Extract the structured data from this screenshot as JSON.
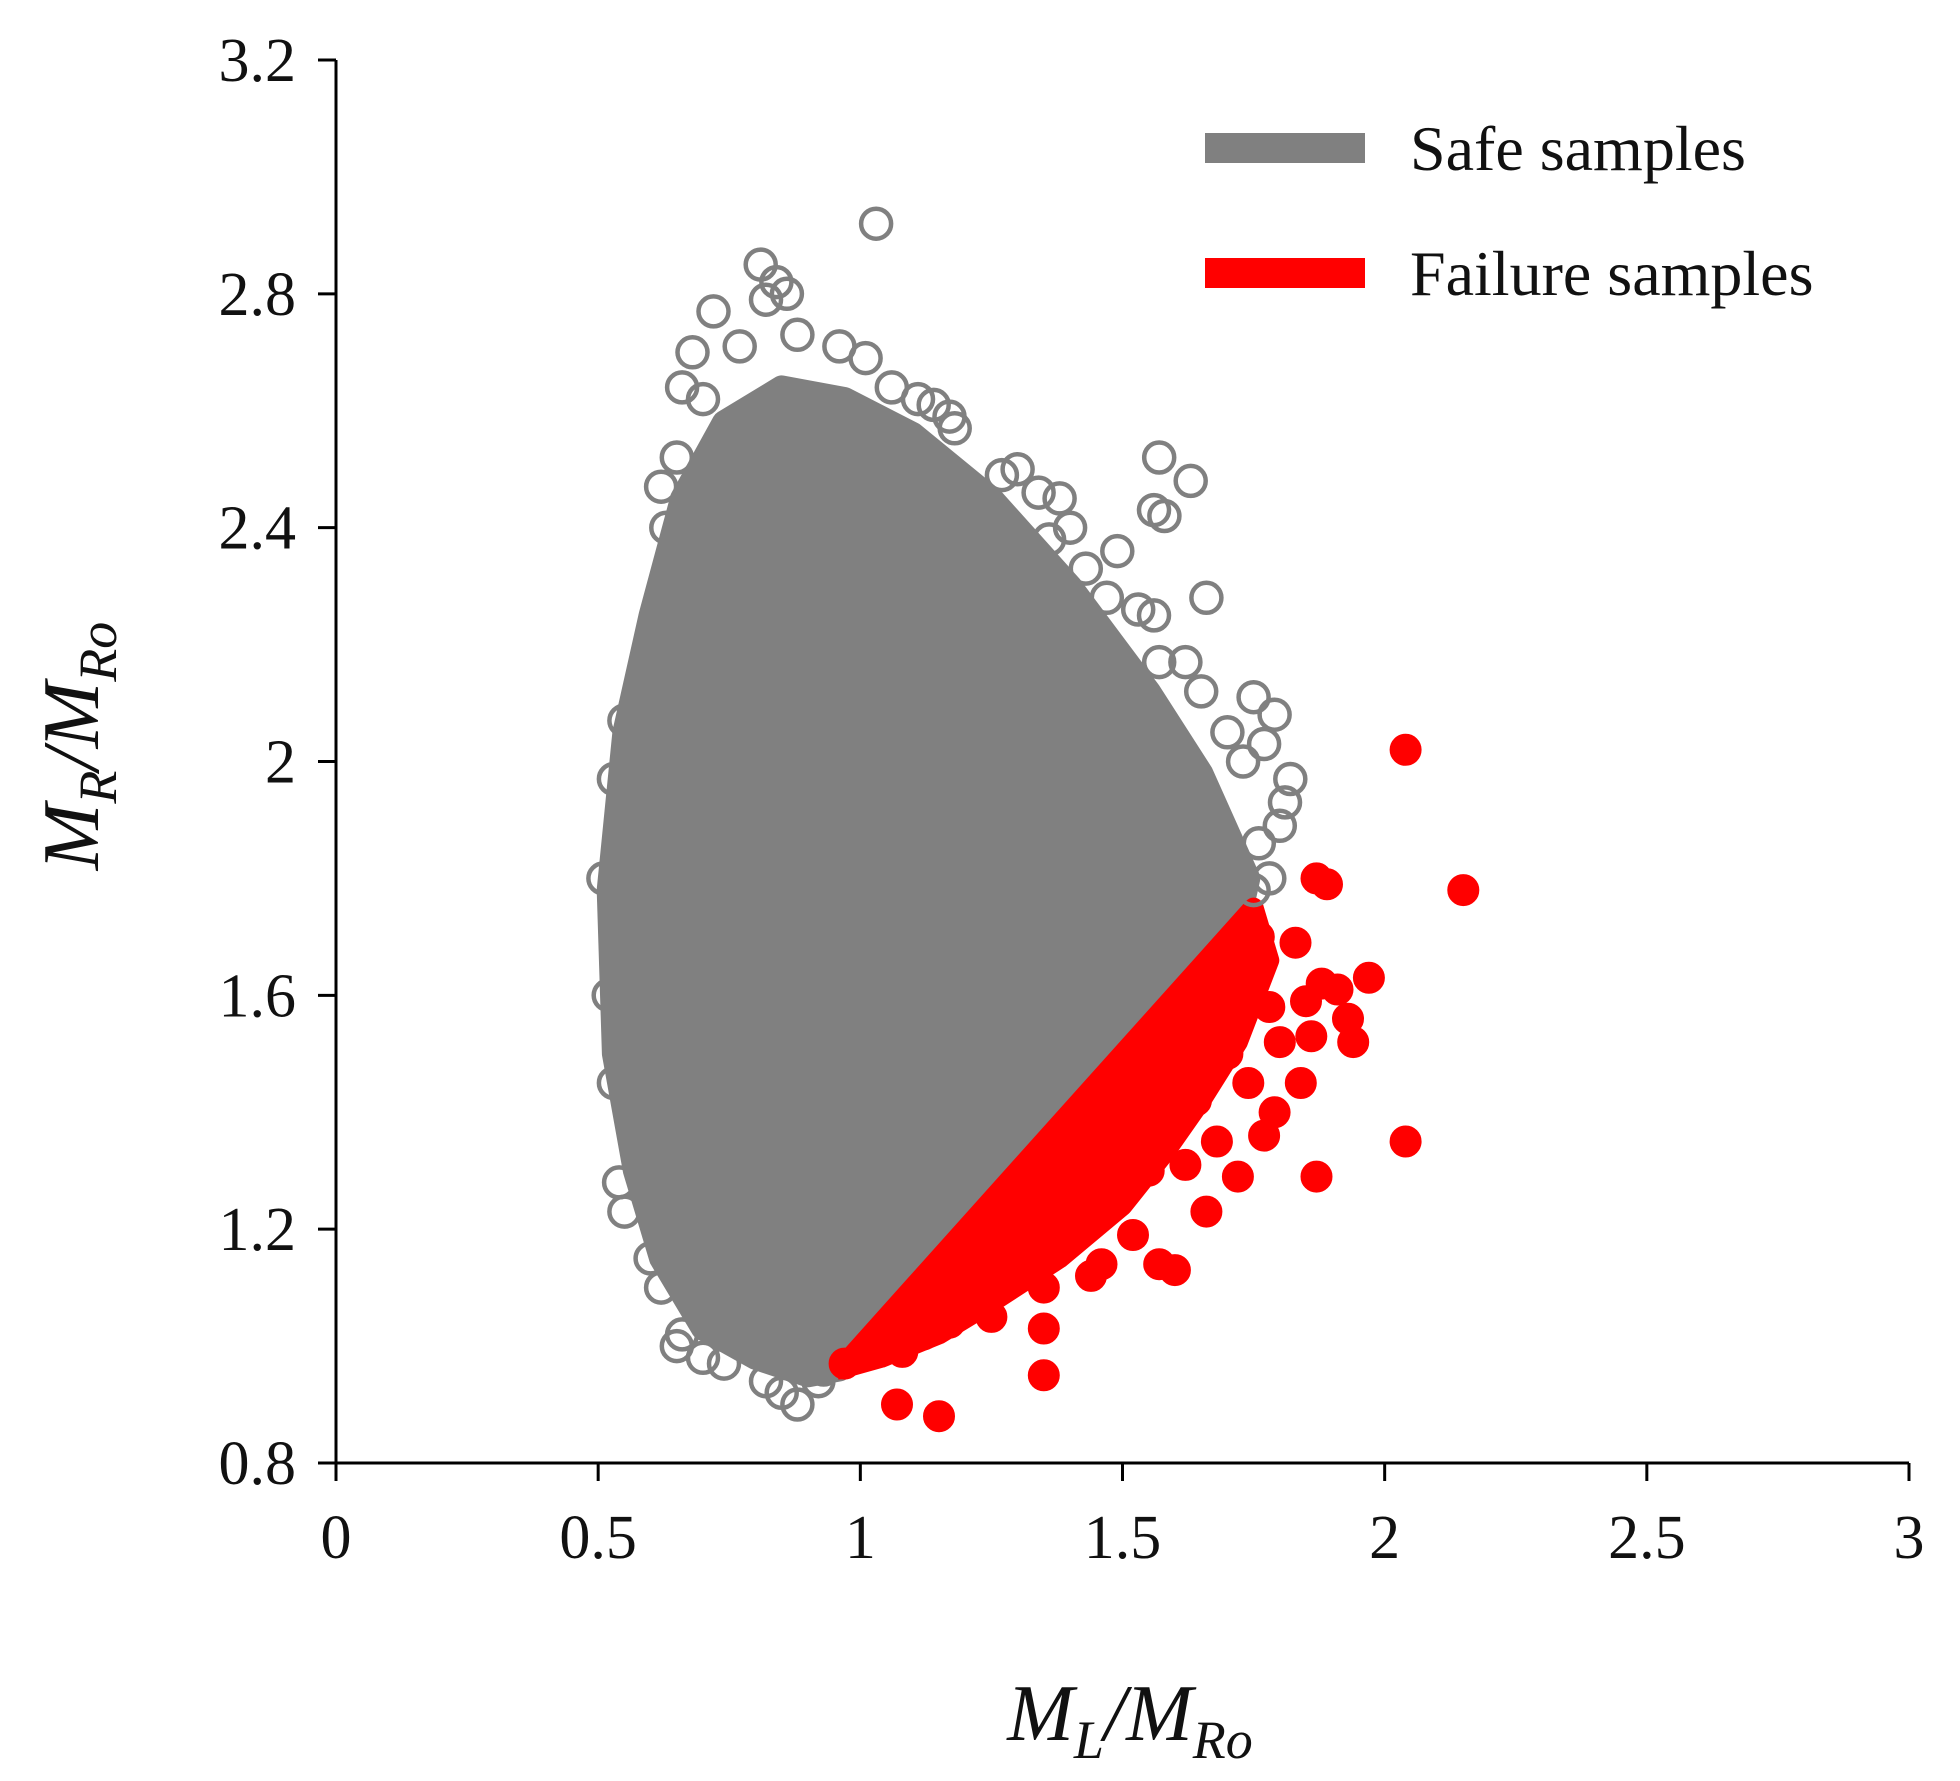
{
  "chart_data": {
    "type": "scatter",
    "title": "",
    "xlabel": "M_L/M_Ro",
    "ylabel": "M_R/M_Ro",
    "axis_label_parts": {
      "x": {
        "main_1": "M",
        "sub_1": "L",
        "slash": "/",
        "main_2": "M",
        "sub_2": "Ro"
      },
      "y": {
        "main_1": "M",
        "sub_1": "R",
        "slash": "/",
        "main_2": "M",
        "sub_2": "Ro"
      }
    },
    "xlim": [
      0,
      3
    ],
    "ylim": [
      0.8,
      3.2
    ],
    "x_ticks": [
      0,
      0.5,
      1,
      1.5,
      2,
      2.5,
      3
    ],
    "y_ticks": [
      0.8,
      1.2,
      1.6,
      2.0,
      2.4,
      2.8,
      3.2
    ],
    "x_tick_labels": [
      "0",
      "0.5",
      "1",
      "1.5",
      "2",
      "2.5",
      "3"
    ],
    "y_tick_labels": [
      "0.8",
      "1.2",
      "1.6",
      "2",
      "2.4",
      "2.8",
      "3.2"
    ],
    "grid": false,
    "legend_position": "top-right",
    "colors": {
      "safe": "#808080",
      "failure": "#ff0000",
      "axis": "#000000"
    },
    "limit_state": "M_R/M_Ro = M_L/M_Ro",
    "series": [
      {
        "name": "Safe samples",
        "marker": "open-circle",
        "color": "#808080",
        "dense_region_polygon": [
          [
            0.52,
            1.78
          ],
          [
            0.55,
            2.05
          ],
          [
            0.6,
            2.25
          ],
          [
            0.66,
            2.45
          ],
          [
            0.74,
            2.58
          ],
          [
            0.85,
            2.64
          ],
          [
            0.97,
            2.62
          ],
          [
            1.1,
            2.56
          ],
          [
            1.25,
            2.45
          ],
          [
            1.4,
            2.3
          ],
          [
            1.55,
            2.12
          ],
          [
            1.65,
            1.98
          ],
          [
            1.74,
            1.8
          ],
          [
            1.72,
            1.72
          ],
          [
            1.5,
            1.5
          ],
          [
            1.3,
            1.3
          ],
          [
            1.1,
            1.1
          ],
          [
            0.96,
            0.96
          ],
          [
            0.9,
            0.95
          ],
          [
            0.8,
            0.98
          ],
          [
            0.7,
            1.03
          ],
          [
            0.62,
            1.15
          ],
          [
            0.57,
            1.3
          ],
          [
            0.53,
            1.5
          ]
        ],
        "points": [
          [
            1.03,
            2.92
          ],
          [
            0.81,
            2.85
          ],
          [
            0.84,
            2.82
          ],
          [
            0.86,
            2.8
          ],
          [
            0.82,
            2.79
          ],
          [
            0.72,
            2.77
          ],
          [
            0.88,
            2.73
          ],
          [
            0.96,
            2.71
          ],
          [
            1.01,
            2.69
          ],
          [
            0.68,
            2.7
          ],
          [
            0.77,
            2.71
          ],
          [
            0.66,
            2.64
          ],
          [
            0.7,
            2.62
          ],
          [
            0.65,
            2.52
          ],
          [
            0.62,
            2.47
          ],
          [
            0.63,
            2.4
          ],
          [
            1.06,
            2.64
          ],
          [
            1.11,
            2.62
          ],
          [
            1.14,
            2.61
          ],
          [
            1.17,
            2.59
          ],
          [
            1.18,
            2.57
          ],
          [
            1.3,
            2.5
          ],
          [
            1.27,
            2.49
          ],
          [
            1.34,
            2.46
          ],
          [
            1.38,
            2.45
          ],
          [
            1.4,
            2.4
          ],
          [
            1.36,
            2.38
          ],
          [
            1.43,
            2.33
          ],
          [
            1.49,
            2.36
          ],
          [
            1.57,
            2.52
          ],
          [
            1.63,
            2.48
          ],
          [
            1.56,
            2.43
          ],
          [
            1.58,
            2.42
          ],
          [
            1.66,
            2.28
          ],
          [
            1.47,
            2.28
          ],
          [
            1.53,
            2.26
          ],
          [
            1.56,
            2.25
          ],
          [
            1.62,
            2.17
          ],
          [
            1.65,
            2.12
          ],
          [
            1.7,
            2.05
          ],
          [
            1.75,
            2.11
          ],
          [
            1.79,
            2.08
          ],
          [
            1.77,
            2.03
          ],
          [
            1.73,
            2.0
          ],
          [
            1.82,
            1.97
          ],
          [
            1.81,
            1.93
          ],
          [
            1.8,
            1.89
          ],
          [
            1.76,
            1.86
          ],
          [
            1.57,
            2.17
          ],
          [
            1.58,
            2.0
          ],
          [
            0.55,
            2.07
          ],
          [
            0.53,
            1.97
          ],
          [
            0.51,
            1.8
          ],
          [
            0.52,
            1.6
          ],
          [
            0.53,
            1.45
          ],
          [
            0.54,
            1.28
          ],
          [
            0.55,
            1.23
          ],
          [
            0.6,
            1.15
          ],
          [
            0.62,
            1.1
          ],
          [
            0.66,
            1.02
          ],
          [
            0.65,
            1.0
          ],
          [
            0.7,
            0.98
          ],
          [
            0.74,
            0.97
          ],
          [
            0.82,
            0.94
          ],
          [
            0.85,
            0.92
          ],
          [
            0.88,
            0.9
          ],
          [
            0.92,
            0.94
          ],
          [
            0.93,
            0.96
          ],
          [
            1.78,
            1.8
          ],
          [
            1.75,
            1.78
          ]
        ]
      },
      {
        "name": "Failure samples",
        "marker": "filled-circle",
        "color": "#ff0000",
        "dense_region_polygon": [
          [
            0.96,
            0.96
          ],
          [
            1.1,
            1.1
          ],
          [
            1.3,
            1.3
          ],
          [
            1.5,
            1.5
          ],
          [
            1.66,
            1.66
          ],
          [
            1.75,
            1.75
          ],
          [
            1.78,
            1.66
          ],
          [
            1.72,
            1.52
          ],
          [
            1.65,
            1.42
          ],
          [
            1.58,
            1.33
          ],
          [
            1.5,
            1.24
          ],
          [
            1.38,
            1.15
          ],
          [
            1.26,
            1.08
          ],
          [
            1.15,
            1.02
          ],
          [
            1.04,
            0.98
          ]
        ],
        "points": [
          [
            2.04,
            2.02
          ],
          [
            2.15,
            1.78
          ],
          [
            1.87,
            1.8
          ],
          [
            1.89,
            1.79
          ],
          [
            1.97,
            1.63
          ],
          [
            1.91,
            1.61
          ],
          [
            1.88,
            1.62
          ],
          [
            1.93,
            1.56
          ],
          [
            1.94,
            1.52
          ],
          [
            1.86,
            1.53
          ],
          [
            1.84,
            1.45
          ],
          [
            1.83,
            1.69
          ],
          [
            1.85,
            1.59
          ],
          [
            1.8,
            1.52
          ],
          [
            1.79,
            1.4
          ],
          [
            1.77,
            1.36
          ],
          [
            1.74,
            1.45
          ],
          [
            1.72,
            1.29
          ],
          [
            1.68,
            1.35
          ],
          [
            1.66,
            1.23
          ],
          [
            1.62,
            1.31
          ],
          [
            1.57,
            1.14
          ],
          [
            1.6,
            1.13
          ],
          [
            1.52,
            1.19
          ],
          [
            1.44,
            1.12
          ],
          [
            1.46,
            1.14
          ],
          [
            1.35,
            1.1
          ],
          [
            1.35,
            1.03
          ],
          [
            1.35,
            0.95
          ],
          [
            1.25,
            1.05
          ],
          [
            1.17,
            1.04
          ],
          [
            1.15,
            0.88
          ],
          [
            1.07,
            0.9
          ],
          [
            1.08,
            0.99
          ],
          [
            1.02,
            0.99
          ],
          [
            0.97,
            0.97
          ],
          [
            2.04,
            1.35
          ],
          [
            1.87,
            1.29
          ],
          [
            1.78,
            1.58
          ],
          [
            1.7,
            1.5
          ],
          [
            1.64,
            1.42
          ],
          [
            1.55,
            1.3
          ],
          [
            1.48,
            1.25
          ],
          [
            1.4,
            1.2
          ],
          [
            1.3,
            1.12
          ],
          [
            1.22,
            1.08
          ],
          [
            1.12,
            1.02
          ],
          [
            1.1,
            1.04
          ],
          [
            1.05,
            1.0
          ],
          [
            1.76,
            1.7
          ]
        ]
      }
    ]
  },
  "legend": {
    "safe_label": "Safe samples",
    "failure_label": "Failure samples"
  }
}
